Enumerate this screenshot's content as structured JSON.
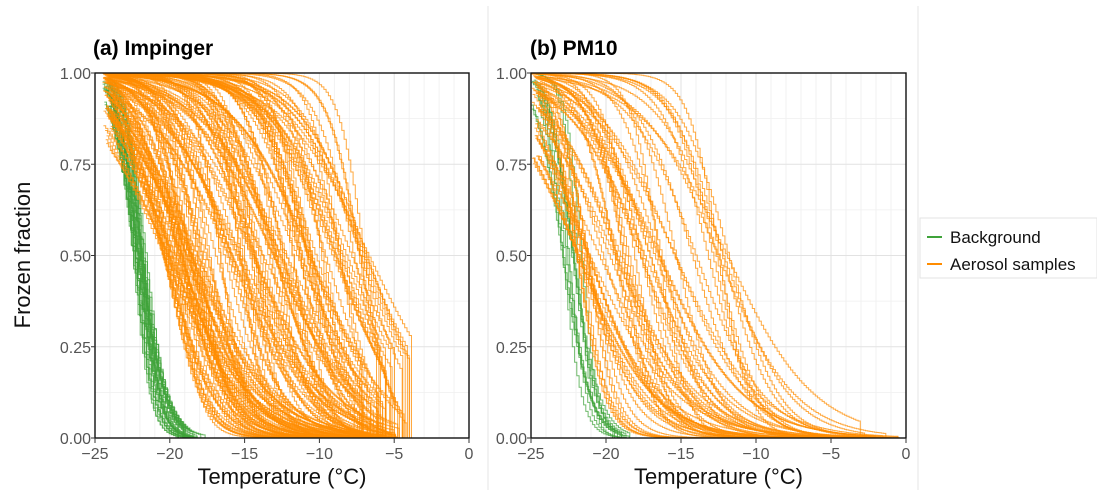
{
  "figure": {
    "ylabel": "Frozen fraction",
    "colors": {
      "background": "#3fa33a",
      "aerosol": "#ff8c00"
    }
  },
  "legend": {
    "items": [
      {
        "label": "Background",
        "color": "#3fa33a"
      },
      {
        "label": "Aerosol samples",
        "color": "#ff8c00"
      }
    ]
  },
  "chart_data": [
    {
      "type": "line",
      "title": "(a) Impinger",
      "xlabel": "Temperature (°C)",
      "ylabel": "Frozen fraction",
      "xlim": [
        -25,
        0
      ],
      "ylim": [
        0,
        1
      ],
      "xticks": [
        "-25",
        "-20",
        "-15",
        "-10",
        "-5",
        "0"
      ],
      "yticks": [
        "0.00",
        "0.25",
        "0.50",
        "0.75",
        "1.00"
      ],
      "grid": true,
      "series": [
        {
          "group": "Background",
          "curves_shown": 30,
          "t50_range_c": [
            -22.6,
            -21.6
          ],
          "frozen_from_c": -24.5,
          "all_frozen_by_c": -17.5
        },
        {
          "group": "Aerosol samples",
          "curves_shown": 150,
          "t50_range_c": [
            -20.5,
            -6.5
          ],
          "frozen_from_c": -24.5,
          "all_frozen_by_c": -4.6
        }
      ]
    },
    {
      "type": "line",
      "title": "(b) PM10",
      "xlabel": "Temperature (°C)",
      "ylabel": "",
      "xlim": [
        -25,
        0
      ],
      "ylim": [
        0,
        1
      ],
      "xticks": [
        "-25",
        "-20",
        "-15",
        "-10",
        "-5",
        "0"
      ],
      "yticks": [
        "0.00",
        "0.25",
        "0.50",
        "0.75",
        "1.00"
      ],
      "grid": true,
      "series": [
        {
          "group": "Background",
          "curves_shown": 12,
          "t50_range_c": [
            -23.0,
            -21.5
          ],
          "frozen_from_c": -25,
          "all_frozen_by_c": -18
        },
        {
          "group": "Aerosol samples",
          "curves_shown": 60,
          "t50_range_c": [
            -22.0,
            -11.5
          ],
          "frozen_from_c": -25,
          "all_frozen_by_c": -0.3
        }
      ]
    }
  ]
}
